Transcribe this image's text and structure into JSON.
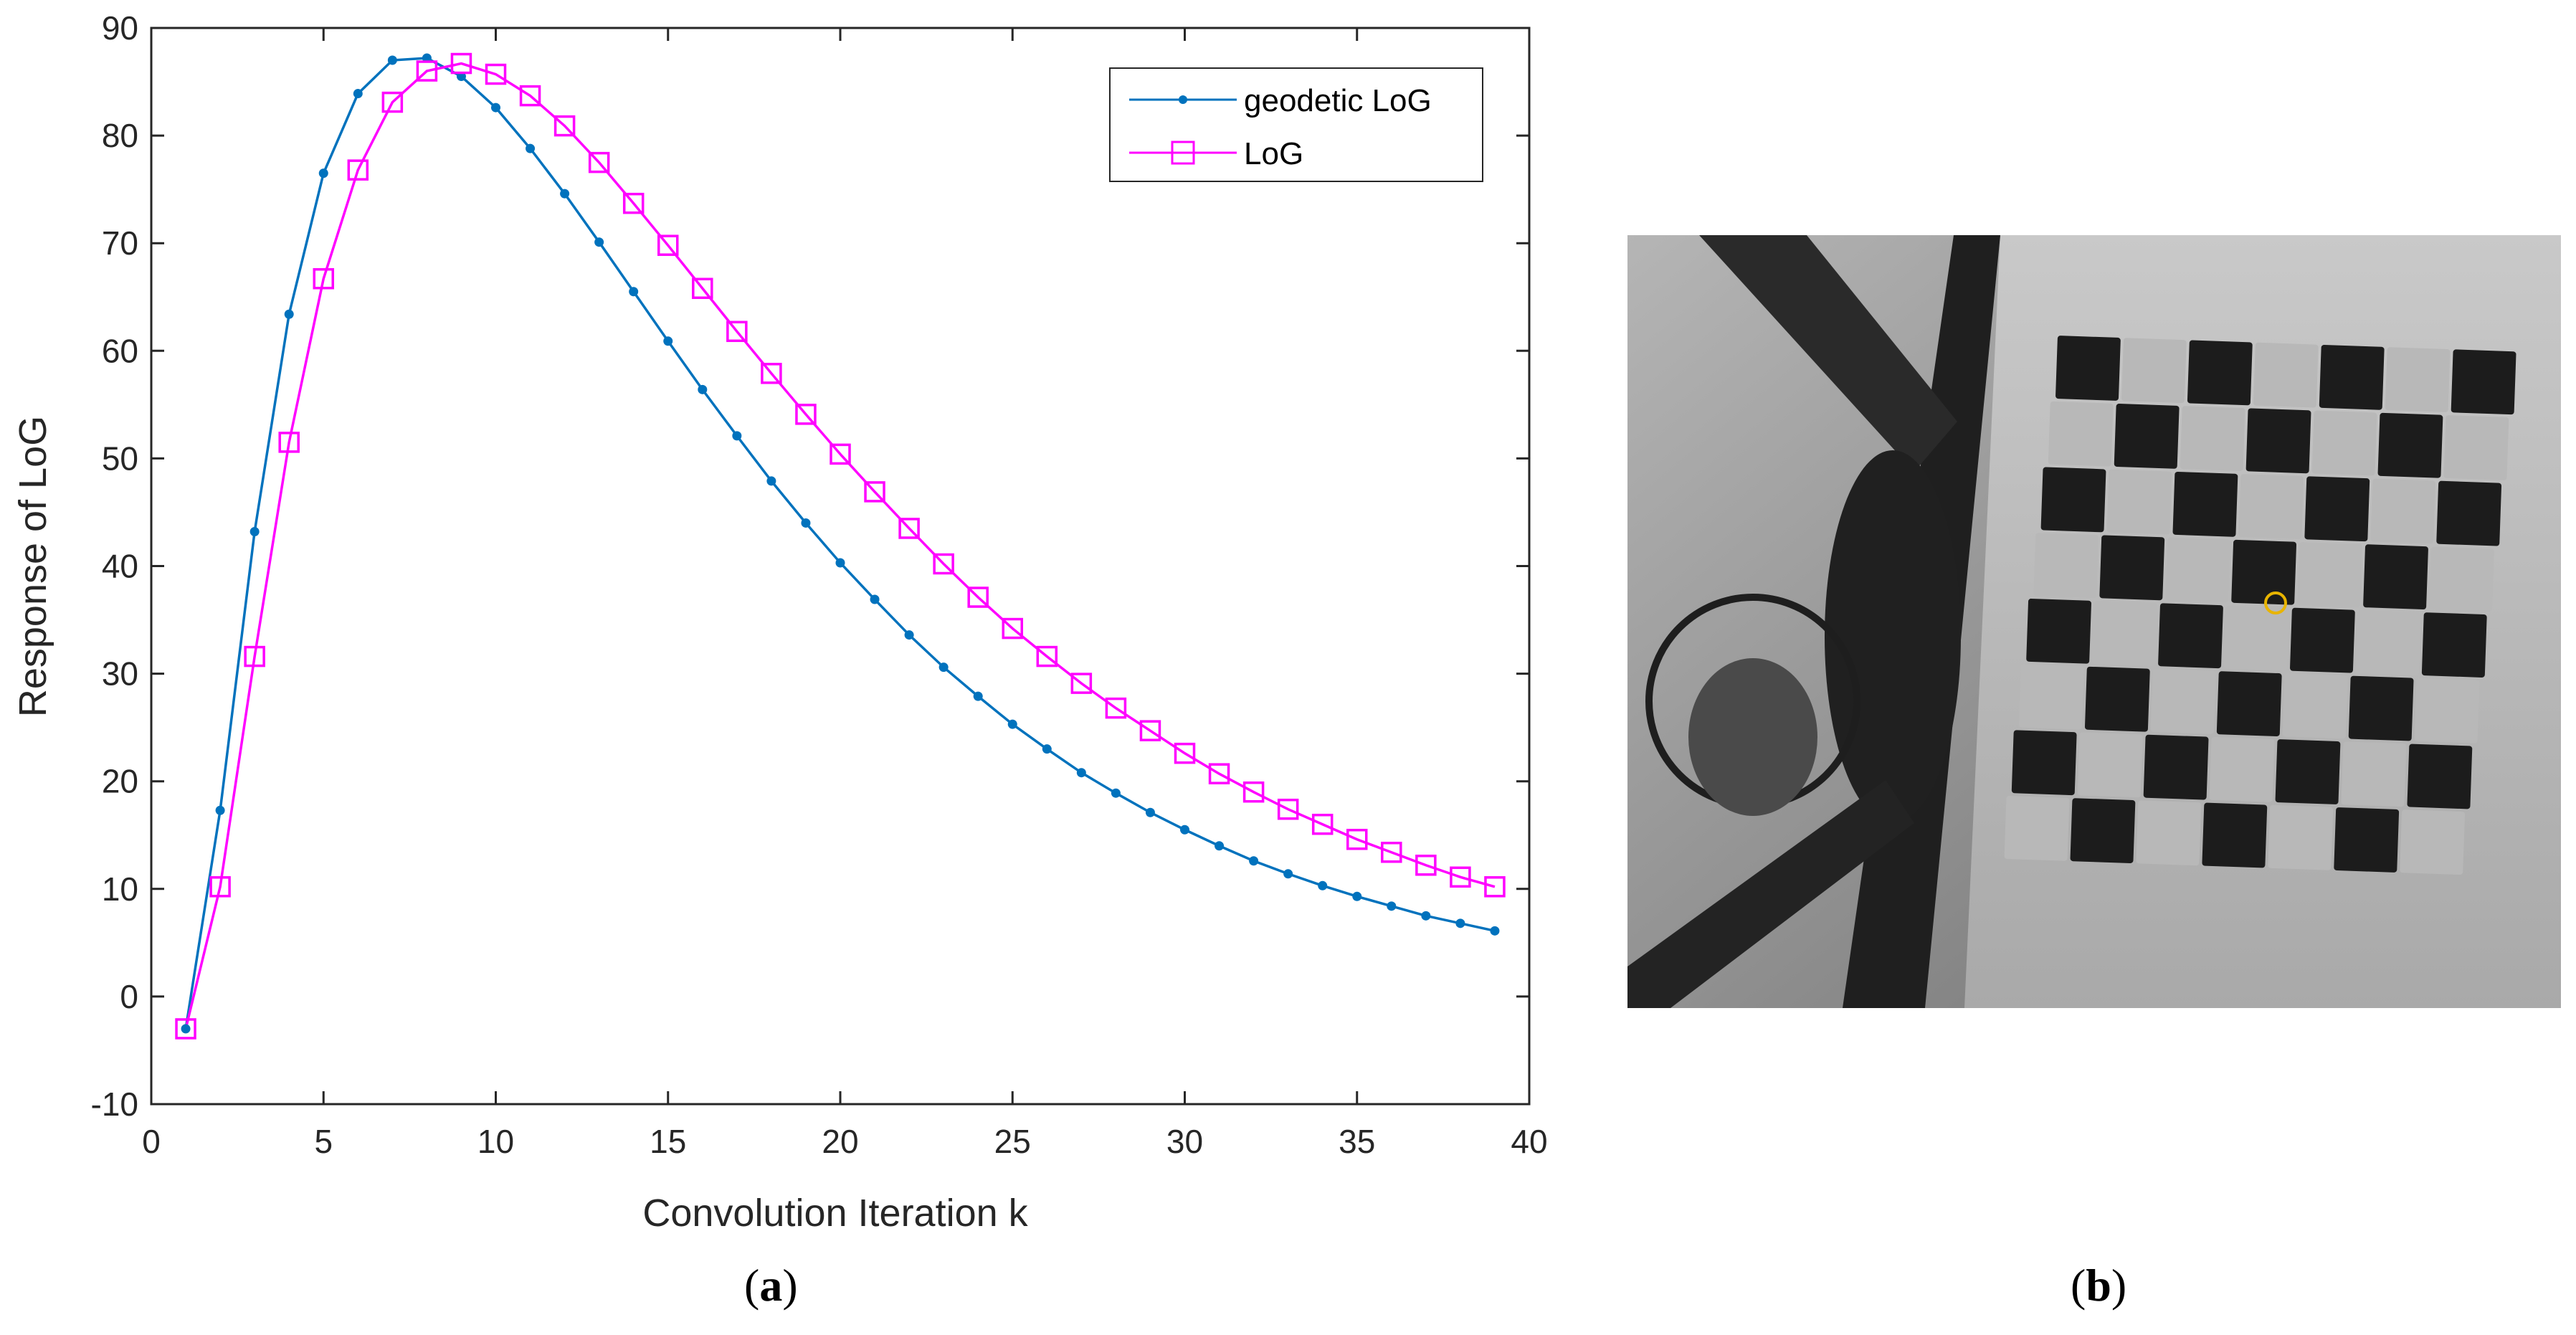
{
  "chart_data": {
    "type": "line",
    "xlabel": "Convolution Iteration k",
    "ylabel": "Response of LoG",
    "xlim": [
      0,
      40
    ],
    "ylim": [
      -10,
      90
    ],
    "xticks": [
      "0",
      "5",
      "10",
      "15",
      "20",
      "25",
      "30",
      "35",
      "40"
    ],
    "yticks": [
      "-10",
      "0",
      "10",
      "20",
      "30",
      "40",
      "50",
      "60",
      "70",
      "80",
      "90"
    ],
    "grid": false,
    "legend_position": "top-right",
    "x": [
      1,
      2,
      3,
      4,
      5,
      6,
      7,
      8,
      9,
      10,
      11,
      12,
      13,
      14,
      15,
      16,
      17,
      18,
      19,
      20,
      21,
      22,
      23,
      24,
      25,
      26,
      27,
      28,
      29,
      30,
      31,
      32,
      33,
      34,
      35,
      36,
      37,
      38,
      39
    ],
    "series": [
      {
        "name": "geodetic LoG",
        "color": "#0072BD",
        "marker": "dot",
        "values": [
          -3.0,
          17.3,
          43.2,
          63.4,
          76.5,
          83.9,
          87.0,
          87.2,
          85.5,
          82.6,
          78.8,
          74.6,
          70.1,
          65.5,
          60.9,
          56.4,
          52.1,
          47.9,
          44.0,
          40.3,
          36.9,
          33.6,
          30.6,
          27.9,
          25.3,
          23.0,
          20.8,
          18.9,
          17.1,
          15.5,
          14.0,
          12.6,
          11.4,
          10.3,
          9.3,
          8.4,
          7.5,
          6.8,
          6.1
        ]
      },
      {
        "name": "LoG",
        "color": "#FF00FF",
        "marker": "square",
        "values": [
          -3.0,
          10.2,
          31.6,
          51.5,
          66.7,
          76.8,
          83.1,
          86.0,
          86.7,
          85.7,
          83.7,
          80.9,
          77.5,
          73.7,
          69.8,
          65.8,
          61.8,
          57.9,
          54.1,
          50.4,
          46.9,
          43.5,
          40.2,
          37.1,
          34.2,
          31.6,
          29.1,
          26.8,
          24.7,
          22.6,
          20.7,
          19.0,
          17.4,
          16.0,
          14.6,
          13.4,
          12.2,
          11.1,
          10.2
        ]
      }
    ]
  },
  "panels": {
    "a_label": "a",
    "b_label": "b"
  },
  "photo": {
    "marker_color": "#E8B400"
  }
}
